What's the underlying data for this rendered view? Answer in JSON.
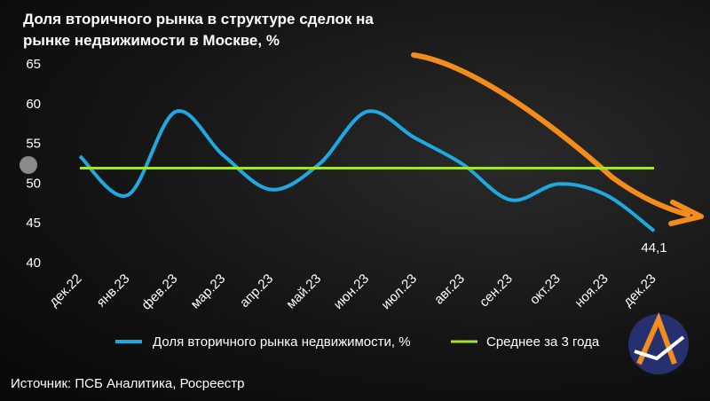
{
  "chart_data": {
    "type": "line",
    "title": "Доля вторичного рынка в структуре сделок на рынке недвижимости в Москве, %",
    "categories": [
      "дек.22",
      "янв.23",
      "фев.23",
      "мар.23",
      "апр.23",
      "май.23",
      "июн.23",
      "июл.23",
      "авг.23",
      "сен.23",
      "окт.23",
      "ноя.23",
      "дек.23"
    ],
    "series": [
      {
        "name": "Доля вторичного рынка недвижимости, %",
        "color": "#1fa9e1",
        "values": [
          53.5,
          48.6,
          59.1,
          53.6,
          49.3,
          52.5,
          59.1,
          55.8,
          52.5,
          48.0,
          50.0,
          48.6,
          44.1
        ],
        "value_labels": [
          null,
          null,
          null,
          null,
          null,
          null,
          null,
          null,
          null,
          null,
          null,
          null,
          "44,1"
        ]
      },
      {
        "name": "Среднее за 3 года",
        "color": "#a6e22e",
        "values": [
          52,
          52,
          52,
          52,
          52,
          52,
          52,
          52,
          52,
          52,
          52,
          52,
          52
        ]
      }
    ],
    "ylim": [
      40,
      65
    ],
    "yticks": [
      40,
      45,
      50,
      55,
      60,
      65
    ],
    "grid": false,
    "source": "Источник: ПСБ Аналитика, Росреестр"
  }
}
